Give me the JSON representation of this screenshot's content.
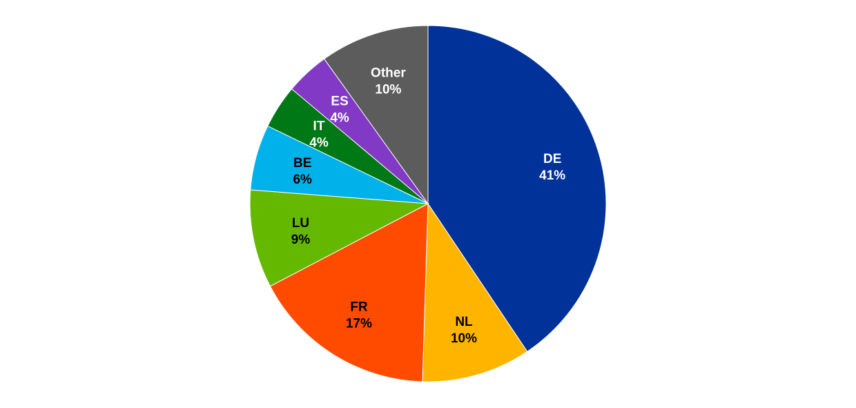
{
  "chart_data": {
    "type": "pie",
    "title": "",
    "slices": [
      {
        "label": "DE",
        "value": 41,
        "value_label": "41%",
        "color": "#003299",
        "label_color": "#ffffff"
      },
      {
        "label": "NL",
        "value": 10,
        "value_label": "10%",
        "color": "#FFB400",
        "label_color": "#000000"
      },
      {
        "label": "FR",
        "value": 17,
        "value_label": "17%",
        "color": "#FF4B00",
        "label_color": "#000000"
      },
      {
        "label": "LU",
        "value": 9,
        "value_label": "9%",
        "color": "#65B800",
        "label_color": "#000000"
      },
      {
        "label": "BE",
        "value": 6,
        "value_label": "6%",
        "color": "#00B1EA",
        "label_color": "#000000"
      },
      {
        "label": "IT",
        "value": 4,
        "value_label": "4%",
        "color": "#007816",
        "label_color": "#ffffff"
      },
      {
        "label": "ES",
        "value": 4,
        "value_label": "4%",
        "color": "#8139C6",
        "label_color": "#ffffff"
      },
      {
        "label": "Other",
        "value": 10,
        "value_label": "10%",
        "color": "#5C5C5C",
        "label_color": "#ffffff"
      }
    ],
    "start_angle": "12 o'clock",
    "direction": "clockwise",
    "legend": "none"
  }
}
